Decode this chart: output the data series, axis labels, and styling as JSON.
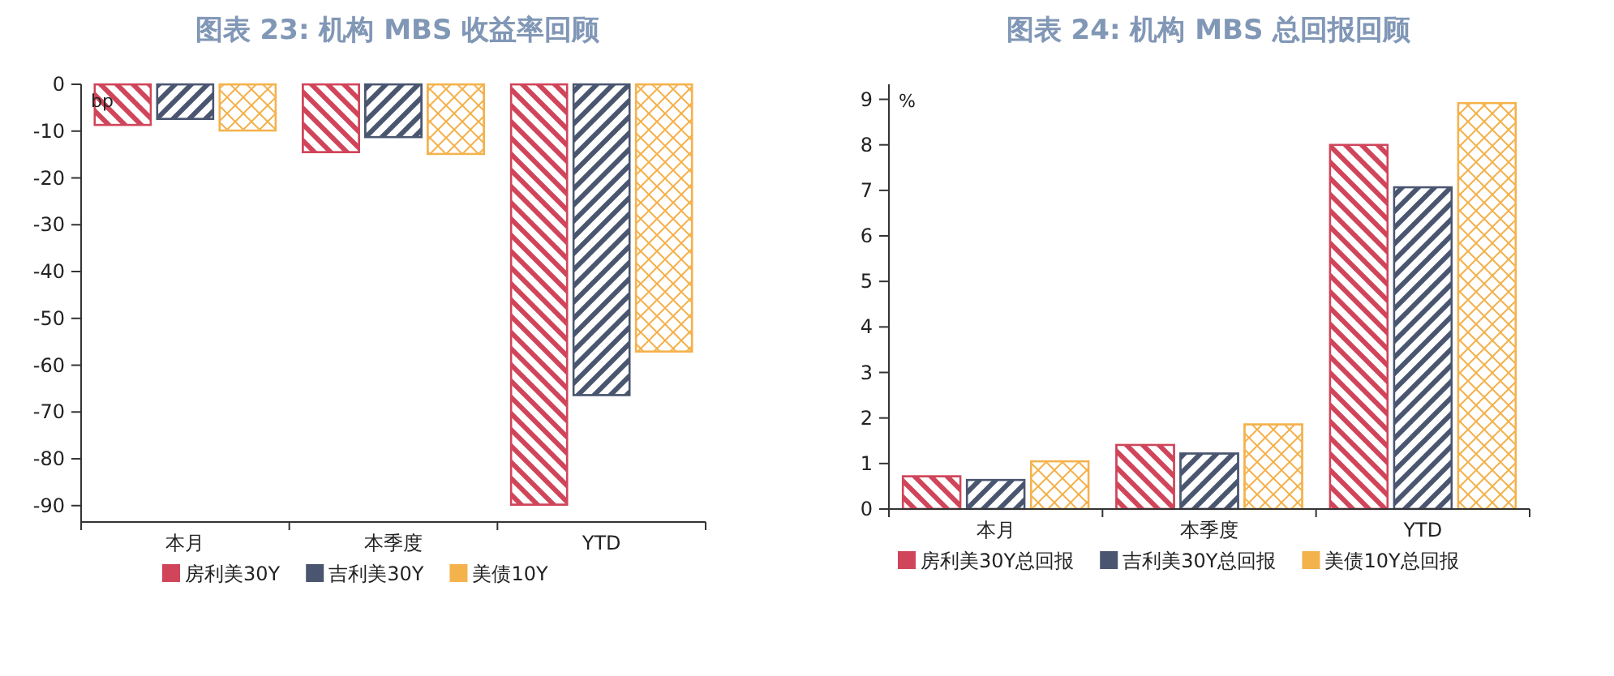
{
  "chart_data": [
    {
      "type": "bar",
      "title": "图表 23:  机构 MBS 收益率回顾",
      "ylabel": "bp",
      "categories": [
        "本月",
        "本季度",
        "YTD"
      ],
      "series": [
        {
          "name": "房利美30Y",
          "color": "#d0455a",
          "values": [
            -8.7,
            -14.5,
            -89.8
          ]
        },
        {
          "name": "吉利美30Y",
          "color": "#4a5670",
          "values": [
            -7.4,
            -11.3,
            -66.4
          ]
        },
        {
          "name": "美债10Y",
          "color": "#f4b24c",
          "values": [
            -9.9,
            -14.9,
            -57.1
          ]
        }
      ],
      "ylim": [
        -93.5,
        0
      ],
      "yticks": [
        0,
        -10,
        -20,
        -30,
        -40,
        -50,
        -60,
        -70,
        -80,
        -90
      ],
      "grid": false,
      "legend": "bottom"
    },
    {
      "type": "bar",
      "title": "图表 24: 机构 MBS 总回报回顾",
      "ylabel": "%",
      "categories": [
        "本月",
        "本季度",
        "YTD"
      ],
      "series": [
        {
          "name": "房利美30Y总回报",
          "color": "#d0455a",
          "values": [
            0.72,
            1.41,
            8.0
          ]
        },
        {
          "name": "吉利美30Y总回报",
          "color": "#4a5670",
          "values": [
            0.64,
            1.22,
            7.07
          ]
        },
        {
          "name": "美债10Y总回报",
          "color": "#f4b24c",
          "values": [
            1.05,
            1.86,
            8.92
          ]
        }
      ],
      "ylim": [
        0,
        9.33
      ],
      "yticks": [
        0,
        1,
        2,
        3,
        4,
        5,
        6,
        7,
        8,
        9
      ],
      "grid": false,
      "legend": "bottom"
    }
  ]
}
